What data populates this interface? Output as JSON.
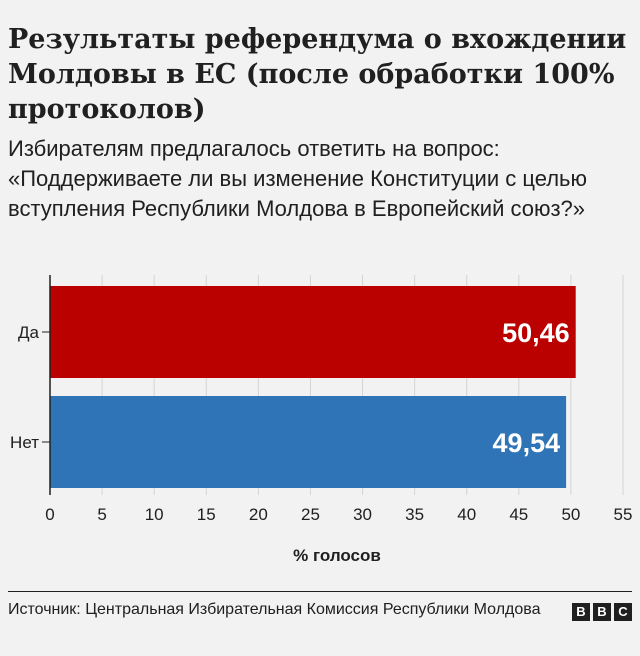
{
  "title": "Результаты референдума о вхождении Молдовы в ЕС (после обработки 100% протоколов)",
  "subtitle": "Избирателям предлагалось ответить на вопрос: «Поддерживаете ли вы изменение Конституции с целью вступления Республики Молдова в Европейский союз?»",
  "source": "Источник: Центральная Избирательная Комиссия Республики Молдова",
  "logo": [
    "B",
    "B",
    "C"
  ],
  "chart_data": {
    "type": "bar",
    "orientation": "horizontal",
    "title": "Результаты референдума о вхождении Молдовы в ЕС (после обработки 100% протоколов)",
    "xlabel": "% голосов",
    "ylabel": "",
    "categories": [
      "Да",
      "Нет"
    ],
    "values": [
      50.46,
      49.54
    ],
    "value_labels": [
      "50,46",
      "49,54"
    ],
    "colors": [
      "#bb0000",
      "#2f74b6"
    ],
    "xlim": [
      0,
      55
    ],
    "xticks": [
      0,
      5,
      10,
      15,
      20,
      25,
      30,
      35,
      40,
      45,
      50,
      55
    ],
    "grid": true,
    "legend": "none"
  }
}
